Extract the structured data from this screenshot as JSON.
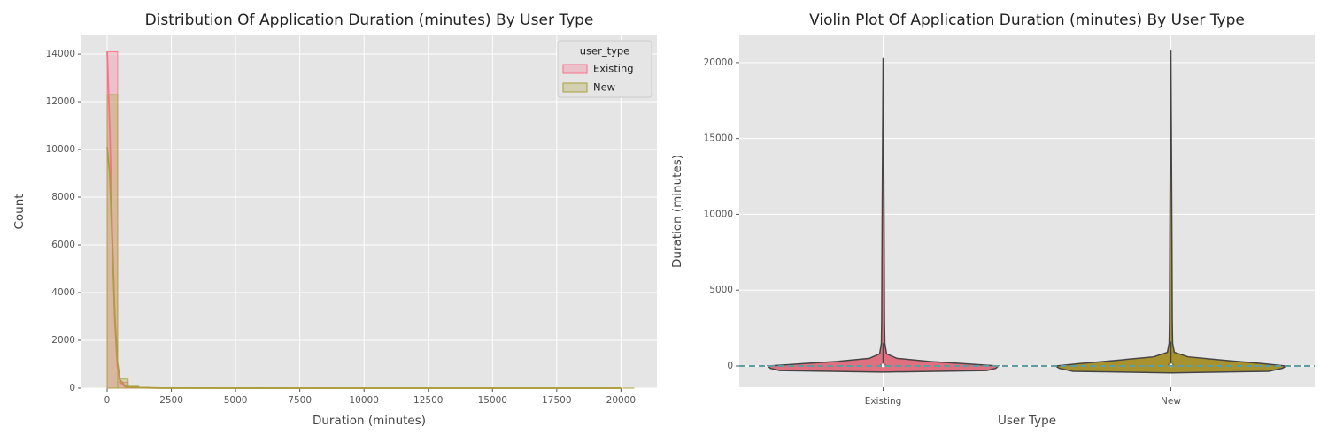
{
  "chart_data": [
    {
      "type": "histogram",
      "title": "Distribution Of Application Duration (minutes) By User Type",
      "xlabel": "Duration (minutes)",
      "ylabel": "Count",
      "xlim": [
        -1000,
        21400
      ],
      "ylim": [
        0,
        14780
      ],
      "xticks": [
        0,
        2500,
        5000,
        7500,
        10000,
        12500,
        15000,
        17500,
        20000
      ],
      "yticks": [
        0,
        2000,
        4000,
        6000,
        8000,
        10000,
        12000,
        14000
      ],
      "grid": true,
      "legend": {
        "title": "user_type",
        "position": "upper right"
      },
      "bins": [
        0,
        410,
        820,
        1230,
        1640,
        2050,
        2460,
        2870,
        3280,
        3690,
        4100,
        4510,
        4920,
        5330,
        5740,
        6150,
        6560,
        6970,
        7380,
        7790,
        8200,
        8610,
        9020,
        9430,
        9840,
        10250,
        10660,
        11070,
        11480,
        11890,
        12300,
        12710,
        13120,
        13530,
        13940,
        14350,
        14760,
        15170,
        15580,
        15990,
        16400,
        16810,
        17220,
        17630,
        18040,
        18450,
        18860,
        19270,
        19680,
        20090,
        20500
      ],
      "kde_x": [
        0,
        100,
        200,
        300,
        400,
        500,
        700,
        1000,
        2000,
        5000,
        10000,
        20000
      ],
      "series": [
        {
          "name": "Existing",
          "color": "#f77189",
          "values": [
            14100,
            250,
            70,
            35,
            22,
            15,
            11,
            8,
            6,
            5,
            4,
            4,
            3,
            3,
            2,
            2,
            2,
            2,
            1,
            1,
            1,
            1,
            1,
            1,
            1,
            1,
            1,
            0,
            0,
            0,
            0,
            0,
            0,
            0,
            0,
            0,
            0,
            0,
            0,
            0,
            0,
            0,
            0,
            0,
            0,
            0,
            0,
            0,
            0,
            1
          ],
          "kde": [
            14100,
            11000,
            6500,
            2800,
            900,
            250,
            60,
            20,
            5,
            2,
            1,
            0
          ]
        },
        {
          "name": "New",
          "color": "#a8a03a",
          "values": [
            12300,
            380,
            80,
            40,
            24,
            15,
            10,
            7,
            5,
            4,
            3,
            3,
            2,
            2,
            2,
            1,
            1,
            1,
            1,
            1,
            0,
            0,
            0,
            0,
            0,
            0,
            0,
            0,
            0,
            0,
            0,
            0,
            0,
            0,
            0,
            0,
            0,
            0,
            0,
            0,
            0,
            0,
            0,
            0,
            0,
            0,
            0,
            0,
            0,
            1
          ],
          "kde": [
            10100,
            9000,
            6000,
            3000,
            1100,
            350,
            80,
            25,
            6,
            2,
            1,
            0
          ]
        }
      ]
    },
    {
      "type": "violin",
      "title": "Violin Plot Of Application Duration (minutes) By User Type",
      "xlabel": "User Type",
      "ylabel": "Duration (minutes)",
      "categories": [
        "Existing",
        "New"
      ],
      "ylim": [
        -1400,
        21800
      ],
      "yticks": [
        0,
        5000,
        10000,
        15000,
        20000
      ],
      "grid": true,
      "reference_line": {
        "value": 0,
        "color": "#5f9ea0",
        "style": "dashed"
      },
      "violins": [
        {
          "color": "#e0707f",
          "density_y": [
            -400,
            -300,
            -150,
            0,
            150,
            300,
            500,
            800,
            1500,
            3000,
            10000,
            20300
          ],
          "density": [
            0,
            0.9,
            0.98,
            1,
            0.7,
            0.4,
            0.12,
            0.03,
            0.015,
            0.012,
            0.008,
            0
          ],
          "whisker_low": 0,
          "q1": 10,
          "median": 35,
          "q3": 120,
          "whisker_high": 1500
        },
        {
          "color": "#a8922e",
          "density_y": [
            -450,
            -350,
            -150,
            0,
            150,
            350,
            600,
            900,
            1500,
            3000,
            10000,
            20800
          ],
          "density": [
            0,
            0.85,
            0.97,
            1,
            0.8,
            0.5,
            0.15,
            0.03,
            0.015,
            0.012,
            0.008,
            0
          ],
          "whisker_low": 0,
          "q1": 10,
          "median": 40,
          "q3": 140,
          "whisker_high": 1600
        }
      ]
    }
  ]
}
